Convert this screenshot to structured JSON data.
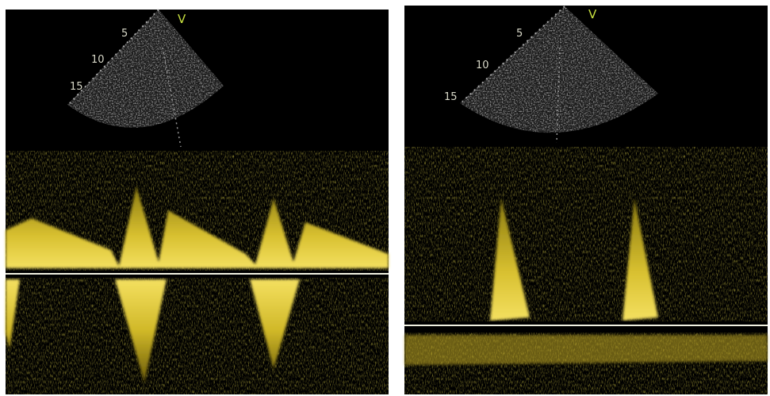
{
  "panels": [
    {
      "marker": "V",
      "depth_labels": [
        "5",
        "10",
        "15"
      ]
    },
    {
      "marker": "V",
      "depth_labels": [
        "5",
        "10",
        "15"
      ]
    }
  ]
}
